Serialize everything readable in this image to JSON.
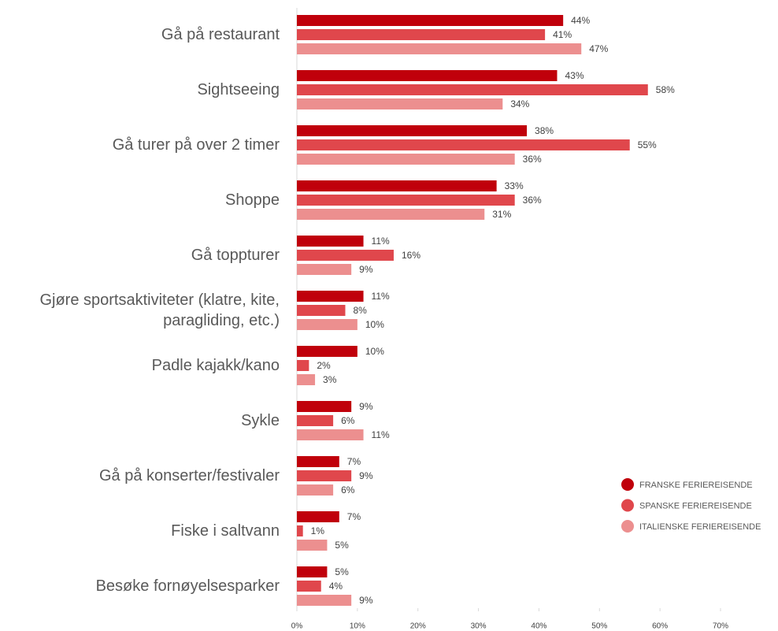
{
  "chart_data": {
    "type": "bar",
    "orientation": "horizontal",
    "categories": [
      "Gå på restaurant",
      "Sightseeing",
      "Gå turer på over 2 timer",
      "Shoppe",
      "Gå toppturer",
      "Gjøre sportsaktiviteter (klatre, kite, paragliding, etc.)",
      "Padle kajakk/kano",
      "Sykle",
      "Gå på konserter/festivaler",
      "Fiske i saltvann",
      "Besøke fornøyelsesparker"
    ],
    "series": [
      {
        "name": "FRANSKE FERIEREISENDE",
        "color": "#c0000b",
        "values": [
          44,
          43,
          38,
          33,
          11,
          11,
          10,
          9,
          7,
          7,
          5
        ],
        "value_labels": [
          "44%",
          "43%",
          "38%",
          "33%",
          "11%",
          "11%",
          "10%",
          "9%",
          "7%",
          "7%",
          "5%"
        ]
      },
      {
        "name": "SPANSKE FERIEREISENDE",
        "color": "#e0474c",
        "values": [
          41,
          58,
          55,
          36,
          16,
          8,
          2,
          6,
          9,
          1,
          4
        ],
        "value_labels": [
          "41%",
          "58%",
          "55%",
          "36%",
          "16%",
          "8%",
          "2%",
          "6%",
          "9%",
          "1%",
          "4%"
        ]
      },
      {
        "name": "ITALIENSKE FERIEREISENDE",
        "color": "#ec8f8f",
        "values": [
          47,
          34,
          36,
          31,
          9,
          10,
          3,
          11,
          6,
          5,
          9
        ],
        "value_labels": [
          "47%",
          "34%",
          "36%",
          "31%",
          "9%",
          "10%",
          "3%",
          "11%",
          "6%",
          "5%",
          "9%"
        ]
      }
    ],
    "xlim": [
      0,
      70
    ],
    "xticks": [
      {
        "value": 0,
        "label": "0%"
      },
      {
        "value": 10,
        "label": "10%"
      },
      {
        "value": 20,
        "label": "20%"
      },
      {
        "value": 30,
        "label": "30%"
      },
      {
        "value": 40,
        "label": "40%"
      },
      {
        "value": 50,
        "label": "50%"
      },
      {
        "value": 60,
        "label": "60%"
      },
      {
        "value": 70,
        "label": "70%"
      }
    ],
    "grid": false,
    "legend": "right"
  }
}
